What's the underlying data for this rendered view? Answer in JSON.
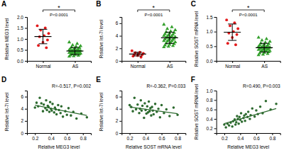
{
  "chart_data": [
    {
      "type": "dot",
      "title": "A",
      "ylabel": "Relative MEG3 level",
      "categories": [
        "Normal",
        "AS"
      ],
      "groups": [
        {
          "color": "#e41a1c",
          "marker": "circle",
          "values": [
            1.6,
            1.5,
            1.4,
            1.25,
            1.15,
            1.1,
            0.95,
            0.85,
            0.7,
            0.6
          ],
          "mean": 1.11,
          "sd": 0.33
        },
        {
          "color": "#33a02c",
          "marker": "triangle",
          "values": [
            0.85,
            0.78,
            0.72,
            0.68,
            0.65,
            0.62,
            0.6,
            0.58,
            0.55,
            0.53,
            0.52,
            0.5,
            0.49,
            0.47,
            0.46,
            0.45,
            0.44,
            0.42,
            0.41,
            0.4,
            0.39,
            0.38,
            0.37,
            0.36,
            0.35,
            0.34,
            0.33,
            0.31,
            0.3,
            0.28,
            0.26,
            0.24,
            0.22,
            0.2
          ],
          "mean": 0.45,
          "sd": 0.16
        }
      ],
      "ylim": [
        0,
        2
      ],
      "yticks": [
        {
          "value": 0,
          "label": "0.0"
        },
        0.5,
        {
          "value": 1,
          "label": "1.0"
        },
        1.5,
        {
          "value": 2,
          "label": "2.0"
        }
      ],
      "significance": {
        "label": "*",
        "p": "P<0.0001"
      }
    },
    {
      "type": "dot",
      "title": "B",
      "ylabel": "Relative let-7i level",
      "categories": [
        "Normal",
        "AS"
      ],
      "groups": [
        {
          "color": "#e41a1c",
          "marker": "circle",
          "values": [
            1.6,
            1.4,
            1.3,
            1.2,
            1.1,
            1.0,
            0.95,
            0.85,
            0.75,
            0.6
          ],
          "mean": 1.08,
          "sd": 0.29
        },
        {
          "color": "#33a02c",
          "marker": "triangle",
          "values": [
            5.8,
            5.4,
            5.1,
            4.9,
            4.7,
            4.6,
            4.5,
            4.4,
            4.3,
            4.2,
            4.1,
            4.0,
            3.95,
            3.9,
            3.8,
            3.75,
            3.7,
            3.6,
            3.5,
            3.45,
            3.4,
            3.3,
            3.2,
            3.15,
            3.1,
            3.0,
            2.9,
            2.8,
            2.7,
            2.6,
            2.5,
            2.4,
            2.3,
            2.2
          ],
          "mean": 3.68,
          "sd": 0.9
        }
      ],
      "ylim": [
        0,
        7
      ],
      "yticks": [
        0,
        2,
        4,
        6
      ],
      "significance": {
        "label": "*",
        "p": "P<0.0001"
      }
    },
    {
      "type": "dot",
      "title": "C",
      "ylabel": "Relative SOST mRNA level",
      "categories": [
        "Normal",
        "AS"
      ],
      "groups": [
        {
          "color": "#e41a1c",
          "marker": "circle",
          "values": [
            1.4,
            1.3,
            1.2,
            1.1,
            1.0,
            0.95,
            0.9,
            0.8,
            0.6,
            0.55
          ],
          "mean": 0.98,
          "sd": 0.28
        },
        {
          "color": "#33a02c",
          "marker": "triangle",
          "values": [
            0.8,
            0.75,
            0.7,
            0.66,
            0.63,
            0.6,
            0.58,
            0.56,
            0.54,
            0.52,
            0.5,
            0.49,
            0.48,
            0.47,
            0.46,
            0.45,
            0.44,
            0.43,
            0.42,
            0.41,
            0.4,
            0.39,
            0.38,
            0.36,
            0.35,
            0.34,
            0.33,
            0.32,
            0.3,
            0.28,
            0.26,
            0.24,
            0.22,
            0.2
          ],
          "mean": 0.45,
          "sd": 0.15
        }
      ],
      "ylim": [
        0,
        1.5
      ],
      "yticks": [
        {
          "value": 0,
          "label": "0.0"
        },
        0.5,
        {
          "value": 1,
          "label": "1.0"
        },
        1.5
      ],
      "significance": {
        "label": "*",
        "p": "P<0.0001"
      }
    },
    {
      "type": "scatter",
      "title": "D",
      "xlabel": "Relative MEG3 level",
      "ylabel": "Relative let-7i level",
      "x": [
        0.85,
        0.78,
        0.72,
        0.68,
        0.65,
        0.62,
        0.6,
        0.58,
        0.55,
        0.53,
        0.52,
        0.5,
        0.49,
        0.47,
        0.46,
        0.45,
        0.44,
        0.42,
        0.41,
        0.4,
        0.39,
        0.38,
        0.37,
        0.36,
        0.35,
        0.34,
        0.33,
        0.31,
        0.3,
        0.28,
        0.26,
        0.24,
        0.22,
        0.2
      ],
      "values": [
        2.6,
        3.2,
        2.4,
        3.5,
        2.9,
        4.1,
        3.0,
        3.6,
        2.7,
        4.4,
        3.3,
        3.8,
        4.6,
        3.1,
        3.9,
        4.2,
        3.4,
        4.8,
        3.7,
        4.0,
        5.1,
        3.5,
        4.3,
        4.5,
        3.8,
        5.4,
        4.1,
        4.7,
        3.6,
        4.9,
        5.8,
        4.4,
        5.0,
        4.2
      ],
      "color": "#2e6b30",
      "marker": "circle",
      "trend": {
        "x": [
          0.2,
          0.85
        ],
        "values": [
          4.6,
          2.9
        ]
      },
      "xlim": [
        0.1,
        0.9
      ],
      "xticks": [
        0.2,
        0.4,
        0.6,
        0.8
      ],
      "ylim": [
        0,
        7
      ],
      "yticks": [
        0,
        2,
        4,
        6
      ],
      "annotation": "R=-0.517, P=0.002"
    },
    {
      "type": "scatter",
      "title": "E",
      "xlabel": "Relative SOST mRNA level",
      "ylabel": "Relative let-7i level",
      "x": [
        0.8,
        0.75,
        0.7,
        0.66,
        0.63,
        0.6,
        0.58,
        0.56,
        0.54,
        0.52,
        0.5,
        0.49,
        0.48,
        0.47,
        0.46,
        0.45,
        0.44,
        0.43,
        0.42,
        0.41,
        0.4,
        0.39,
        0.38,
        0.36,
        0.35,
        0.34,
        0.33,
        0.32,
        0.3,
        0.28,
        0.26,
        0.24,
        0.22,
        0.2
      ],
      "values": [
        3.0,
        4.2,
        2.8,
        3.9,
        3.3,
        4.6,
        2.6,
        4.0,
        3.5,
        4.8,
        3.1,
        3.7,
        4.3,
        2.9,
        4.1,
        3.6,
        5.2,
        3.4,
        4.4,
        3.2,
        3.8,
        4.9,
        2.5,
        4.5,
        3.7,
        5.4,
        4.0,
        3.3,
        4.7,
        3.9,
        5.8,
        3.6,
        4.3,
        4.6
      ],
      "color": "#2e6b30",
      "marker": "circle",
      "trend": {
        "x": [
          0.2,
          0.8
        ],
        "values": [
          4.3,
          3.2
        ]
      },
      "xlim": [
        0.1,
        0.9
      ],
      "xticks": [
        0.2,
        0.4,
        0.6,
        0.8
      ],
      "ylim": [
        0,
        7
      ],
      "yticks": [
        0,
        2,
        4,
        6
      ],
      "annotation": "R=-0.362, P=0.033"
    },
    {
      "type": "scatter",
      "title": "F",
      "xlabel": "Relative MEG3 level",
      "ylabel": "Relative SOST mRNA level",
      "x": [
        0.85,
        0.78,
        0.72,
        0.68,
        0.65,
        0.62,
        0.6,
        0.58,
        0.55,
        0.53,
        0.52,
        0.5,
        0.49,
        0.47,
        0.46,
        0.45,
        0.44,
        0.42,
        0.41,
        0.4,
        0.39,
        0.38,
        0.37,
        0.36,
        0.35,
        0.34,
        0.33,
        0.31,
        0.3,
        0.28,
        0.26,
        0.24,
        0.22,
        0.2
      ],
      "values": [
        0.72,
        0.6,
        0.78,
        0.52,
        0.66,
        0.5,
        0.58,
        0.45,
        0.62,
        0.48,
        0.4,
        0.55,
        0.44,
        0.5,
        0.36,
        0.47,
        0.42,
        0.34,
        0.52,
        0.38,
        0.44,
        0.3,
        0.4,
        0.46,
        0.33,
        0.28,
        0.39,
        0.35,
        0.24,
        0.32,
        0.26,
        0.3,
        0.22,
        0.28
      ],
      "color": "#2e6b30",
      "marker": "circle",
      "trend": {
        "x": [
          0.2,
          0.85
        ],
        "values": [
          0.3,
          0.62
        ]
      },
      "xlim": [
        0.1,
        0.9
      ],
      "xticks": [
        0.2,
        0.4,
        0.6,
        0.8
      ],
      "ylim": [
        0.1,
        1
      ],
      "yticks": [
        0.2,
        0.4,
        0.6,
        0.8,
        {
          "value": 1,
          "label": "1.0"
        }
      ],
      "annotation": "R=0.490, P=0.003"
    }
  ]
}
